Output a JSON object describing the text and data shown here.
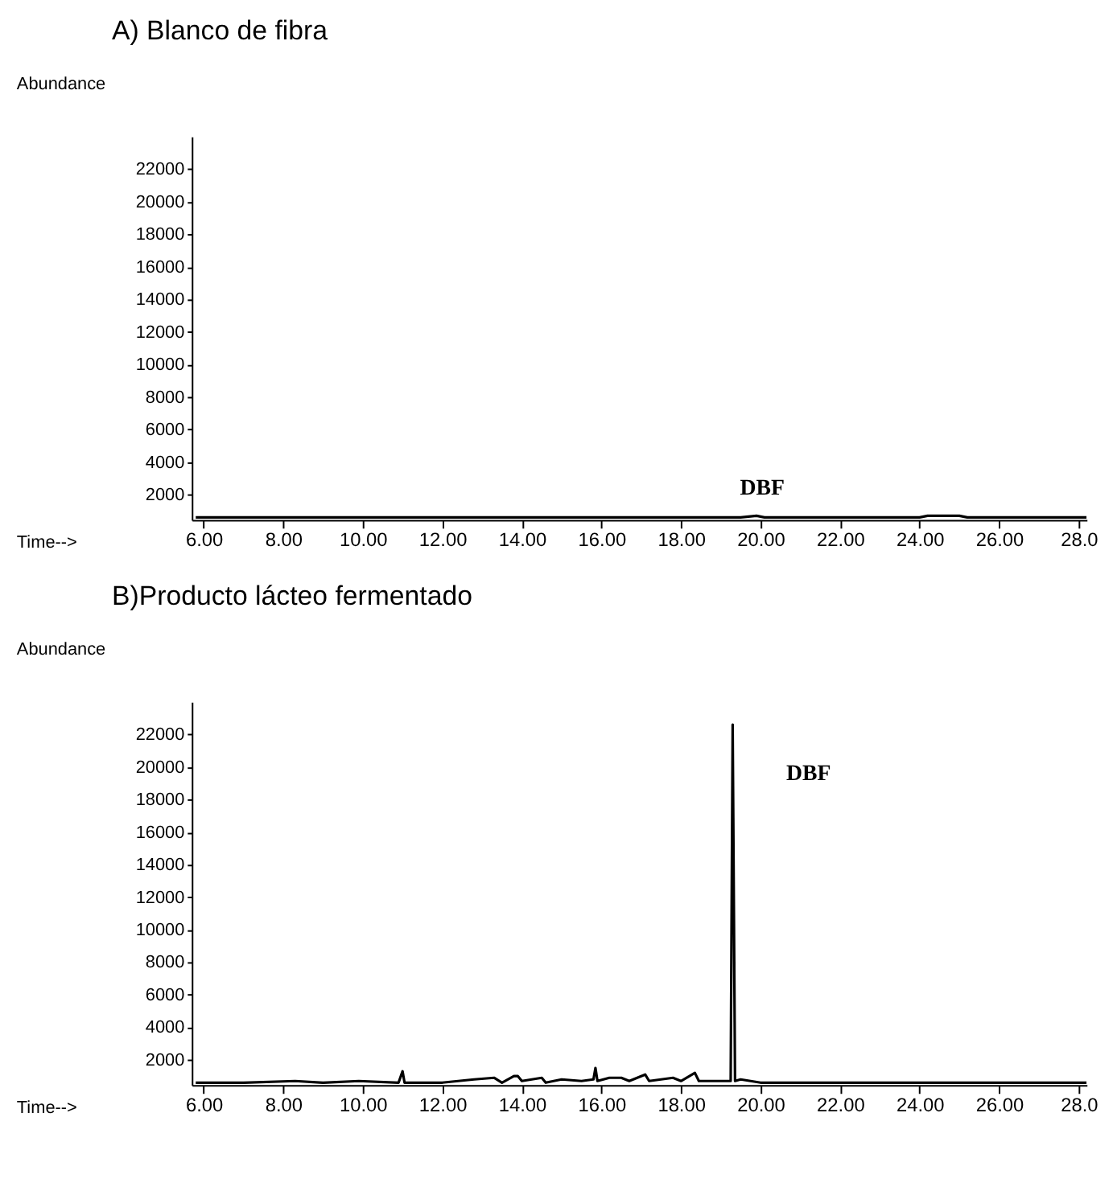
{
  "chart_data": [
    {
      "type": "line",
      "title": "A) Blanco de fibra",
      "xlabel": "Time-->",
      "ylabel": "Abundance",
      "x": [
        5.8,
        8.0,
        10.0,
        14.0,
        18.0,
        19.2,
        19.5,
        19.9,
        20.1,
        21.0,
        22.0,
        22.8,
        23.0,
        24.0,
        24.2,
        25.0,
        25.2,
        28.2
      ],
      "series": [
        {
          "color": "#000000",
          "values": [
            600,
            600,
            600,
            600,
            600,
            600,
            600,
            700,
            600,
            600,
            600,
            600,
            600,
            600,
            700,
            700,
            600,
            600
          ]
        }
      ],
      "annotations": [
        "DBF"
      ],
      "xlim": [
        5.7,
        28.2
      ],
      "ylim": [
        450,
        24000
      ],
      "xticks": [
        {
          "value": 6,
          "label": "6.00"
        },
        {
          "value": 8,
          "label": "8.00"
        },
        {
          "value": 10,
          "label": "10.00"
        },
        {
          "value": 12,
          "label": "12.00"
        },
        {
          "value": 14,
          "label": "14.00"
        },
        {
          "value": 16,
          "label": "16.00"
        },
        {
          "value": 18,
          "label": "18.00"
        },
        {
          "value": 20,
          "label": "20.00"
        },
        {
          "value": 22,
          "label": "22.00"
        },
        {
          "value": 24,
          "label": "24.00"
        },
        {
          "value": 26,
          "label": "26.00"
        },
        {
          "value": 28,
          "label": "28.0"
        }
      ],
      "yticks": [
        2000,
        4000,
        6000,
        8000,
        10000,
        12000,
        14000,
        16000,
        18000,
        20000,
        22000
      ],
      "grid": false,
      "marker": "none",
      "line_style": "solid"
    },
    {
      "type": "line",
      "title": "B)Producto lácteo fermentado",
      "xlabel": "Time-->",
      "ylabel": "Abundance",
      "x": [
        5.8,
        7.0,
        8.3,
        9.0,
        9.9,
        10.9,
        11.0,
        11.05,
        12.0,
        12.8,
        13.3,
        13.5,
        13.8,
        13.9,
        14.0,
        14.5,
        14.6,
        15.0,
        15.5,
        15.8,
        15.85,
        15.9,
        16.2,
        16.5,
        16.7,
        16.9,
        17.1,
        17.2,
        17.8,
        18.0,
        18.35,
        18.45,
        18.9,
        19.25,
        19.3,
        19.36,
        19.5,
        20.0,
        28.2
      ],
      "series": [
        {
          "color": "#000000",
          "values": [
            600,
            600,
            700,
            600,
            700,
            600,
            1300,
            600,
            600,
            800,
            900,
            600,
            1000,
            1000,
            700,
            900,
            600,
            800,
            700,
            800,
            1500,
            700,
            900,
            900,
            700,
            900,
            1100,
            700,
            900,
            700,
            1200,
            700,
            700,
            700,
            22600,
            700,
            800,
            600,
            600
          ]
        }
      ],
      "annotations": [
        "DBF"
      ],
      "xlim": [
        5.7,
        28.2
      ],
      "ylim": [
        450,
        24000
      ],
      "xticks": [
        {
          "value": 6,
          "label": "6.00"
        },
        {
          "value": 8,
          "label": "8.00"
        },
        {
          "value": 10,
          "label": "10.00"
        },
        {
          "value": 12,
          "label": "12.00"
        },
        {
          "value": 14,
          "label": "14.00"
        },
        {
          "value": 16,
          "label": "16.00"
        },
        {
          "value": 18,
          "label": "18.00"
        },
        {
          "value": 20,
          "label": "20.00"
        },
        {
          "value": 22,
          "label": "22.00"
        },
        {
          "value": 24,
          "label": "24.00"
        },
        {
          "value": 26,
          "label": "26.00"
        },
        {
          "value": 28,
          "label": "28.0"
        }
      ],
      "yticks": [
        2000,
        4000,
        6000,
        8000,
        10000,
        12000,
        14000,
        16000,
        18000,
        20000,
        22000
      ],
      "grid": false,
      "marker": "none",
      "line_style": "solid"
    }
  ]
}
